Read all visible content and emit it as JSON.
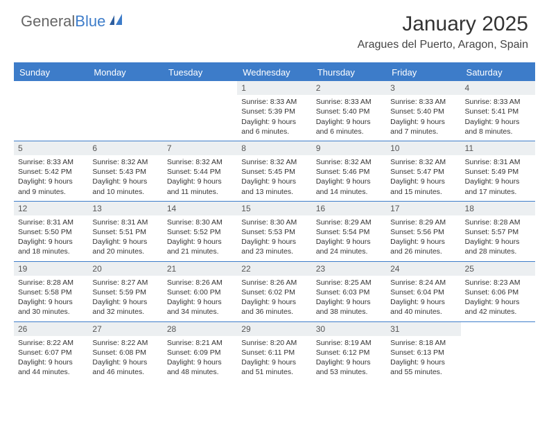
{
  "logo": {
    "part1": "General",
    "part2": "Blue"
  },
  "title": "January 2025",
  "location": "Aragues del Puerto, Aragon, Spain",
  "colors": {
    "brand": "#3d7cc9",
    "daynum_bg": "#eceff1",
    "text": "#333333",
    "bg": "#ffffff"
  },
  "day_names": [
    "Sunday",
    "Monday",
    "Tuesday",
    "Wednesday",
    "Thursday",
    "Friday",
    "Saturday"
  ],
  "weeks": [
    [
      {
        "empty": true
      },
      {
        "empty": true
      },
      {
        "empty": true
      },
      {
        "day": "1",
        "sunrise": "Sunrise: 8:33 AM",
        "sunset": "Sunset: 5:39 PM",
        "daylight": "Daylight: 9 hours and 6 minutes."
      },
      {
        "day": "2",
        "sunrise": "Sunrise: 8:33 AM",
        "sunset": "Sunset: 5:40 PM",
        "daylight": "Daylight: 9 hours and 6 minutes."
      },
      {
        "day": "3",
        "sunrise": "Sunrise: 8:33 AM",
        "sunset": "Sunset: 5:40 PM",
        "daylight": "Daylight: 9 hours and 7 minutes."
      },
      {
        "day": "4",
        "sunrise": "Sunrise: 8:33 AM",
        "sunset": "Sunset: 5:41 PM",
        "daylight": "Daylight: 9 hours and 8 minutes."
      }
    ],
    [
      {
        "day": "5",
        "sunrise": "Sunrise: 8:33 AM",
        "sunset": "Sunset: 5:42 PM",
        "daylight": "Daylight: 9 hours and 9 minutes."
      },
      {
        "day": "6",
        "sunrise": "Sunrise: 8:32 AM",
        "sunset": "Sunset: 5:43 PM",
        "daylight": "Daylight: 9 hours and 10 minutes."
      },
      {
        "day": "7",
        "sunrise": "Sunrise: 8:32 AM",
        "sunset": "Sunset: 5:44 PM",
        "daylight": "Daylight: 9 hours and 11 minutes."
      },
      {
        "day": "8",
        "sunrise": "Sunrise: 8:32 AM",
        "sunset": "Sunset: 5:45 PM",
        "daylight": "Daylight: 9 hours and 13 minutes."
      },
      {
        "day": "9",
        "sunrise": "Sunrise: 8:32 AM",
        "sunset": "Sunset: 5:46 PM",
        "daylight": "Daylight: 9 hours and 14 minutes."
      },
      {
        "day": "10",
        "sunrise": "Sunrise: 8:32 AM",
        "sunset": "Sunset: 5:47 PM",
        "daylight": "Daylight: 9 hours and 15 minutes."
      },
      {
        "day": "11",
        "sunrise": "Sunrise: 8:31 AM",
        "sunset": "Sunset: 5:49 PM",
        "daylight": "Daylight: 9 hours and 17 minutes."
      }
    ],
    [
      {
        "day": "12",
        "sunrise": "Sunrise: 8:31 AM",
        "sunset": "Sunset: 5:50 PM",
        "daylight": "Daylight: 9 hours and 18 minutes."
      },
      {
        "day": "13",
        "sunrise": "Sunrise: 8:31 AM",
        "sunset": "Sunset: 5:51 PM",
        "daylight": "Daylight: 9 hours and 20 minutes."
      },
      {
        "day": "14",
        "sunrise": "Sunrise: 8:30 AM",
        "sunset": "Sunset: 5:52 PM",
        "daylight": "Daylight: 9 hours and 21 minutes."
      },
      {
        "day": "15",
        "sunrise": "Sunrise: 8:30 AM",
        "sunset": "Sunset: 5:53 PM",
        "daylight": "Daylight: 9 hours and 23 minutes."
      },
      {
        "day": "16",
        "sunrise": "Sunrise: 8:29 AM",
        "sunset": "Sunset: 5:54 PM",
        "daylight": "Daylight: 9 hours and 24 minutes."
      },
      {
        "day": "17",
        "sunrise": "Sunrise: 8:29 AM",
        "sunset": "Sunset: 5:56 PM",
        "daylight": "Daylight: 9 hours and 26 minutes."
      },
      {
        "day": "18",
        "sunrise": "Sunrise: 8:28 AM",
        "sunset": "Sunset: 5:57 PM",
        "daylight": "Daylight: 9 hours and 28 minutes."
      }
    ],
    [
      {
        "day": "19",
        "sunrise": "Sunrise: 8:28 AM",
        "sunset": "Sunset: 5:58 PM",
        "daylight": "Daylight: 9 hours and 30 minutes."
      },
      {
        "day": "20",
        "sunrise": "Sunrise: 8:27 AM",
        "sunset": "Sunset: 5:59 PM",
        "daylight": "Daylight: 9 hours and 32 minutes."
      },
      {
        "day": "21",
        "sunrise": "Sunrise: 8:26 AM",
        "sunset": "Sunset: 6:00 PM",
        "daylight": "Daylight: 9 hours and 34 minutes."
      },
      {
        "day": "22",
        "sunrise": "Sunrise: 8:26 AM",
        "sunset": "Sunset: 6:02 PM",
        "daylight": "Daylight: 9 hours and 36 minutes."
      },
      {
        "day": "23",
        "sunrise": "Sunrise: 8:25 AM",
        "sunset": "Sunset: 6:03 PM",
        "daylight": "Daylight: 9 hours and 38 minutes."
      },
      {
        "day": "24",
        "sunrise": "Sunrise: 8:24 AM",
        "sunset": "Sunset: 6:04 PM",
        "daylight": "Daylight: 9 hours and 40 minutes."
      },
      {
        "day": "25",
        "sunrise": "Sunrise: 8:23 AM",
        "sunset": "Sunset: 6:06 PM",
        "daylight": "Daylight: 9 hours and 42 minutes."
      }
    ],
    [
      {
        "day": "26",
        "sunrise": "Sunrise: 8:22 AM",
        "sunset": "Sunset: 6:07 PM",
        "daylight": "Daylight: 9 hours and 44 minutes."
      },
      {
        "day": "27",
        "sunrise": "Sunrise: 8:22 AM",
        "sunset": "Sunset: 6:08 PM",
        "daylight": "Daylight: 9 hours and 46 minutes."
      },
      {
        "day": "28",
        "sunrise": "Sunrise: 8:21 AM",
        "sunset": "Sunset: 6:09 PM",
        "daylight": "Daylight: 9 hours and 48 minutes."
      },
      {
        "day": "29",
        "sunrise": "Sunrise: 8:20 AM",
        "sunset": "Sunset: 6:11 PM",
        "daylight": "Daylight: 9 hours and 51 minutes."
      },
      {
        "day": "30",
        "sunrise": "Sunrise: 8:19 AM",
        "sunset": "Sunset: 6:12 PM",
        "daylight": "Daylight: 9 hours and 53 minutes."
      },
      {
        "day": "31",
        "sunrise": "Sunrise: 8:18 AM",
        "sunset": "Sunset: 6:13 PM",
        "daylight": "Daylight: 9 hours and 55 minutes."
      },
      {
        "empty": true
      }
    ]
  ]
}
